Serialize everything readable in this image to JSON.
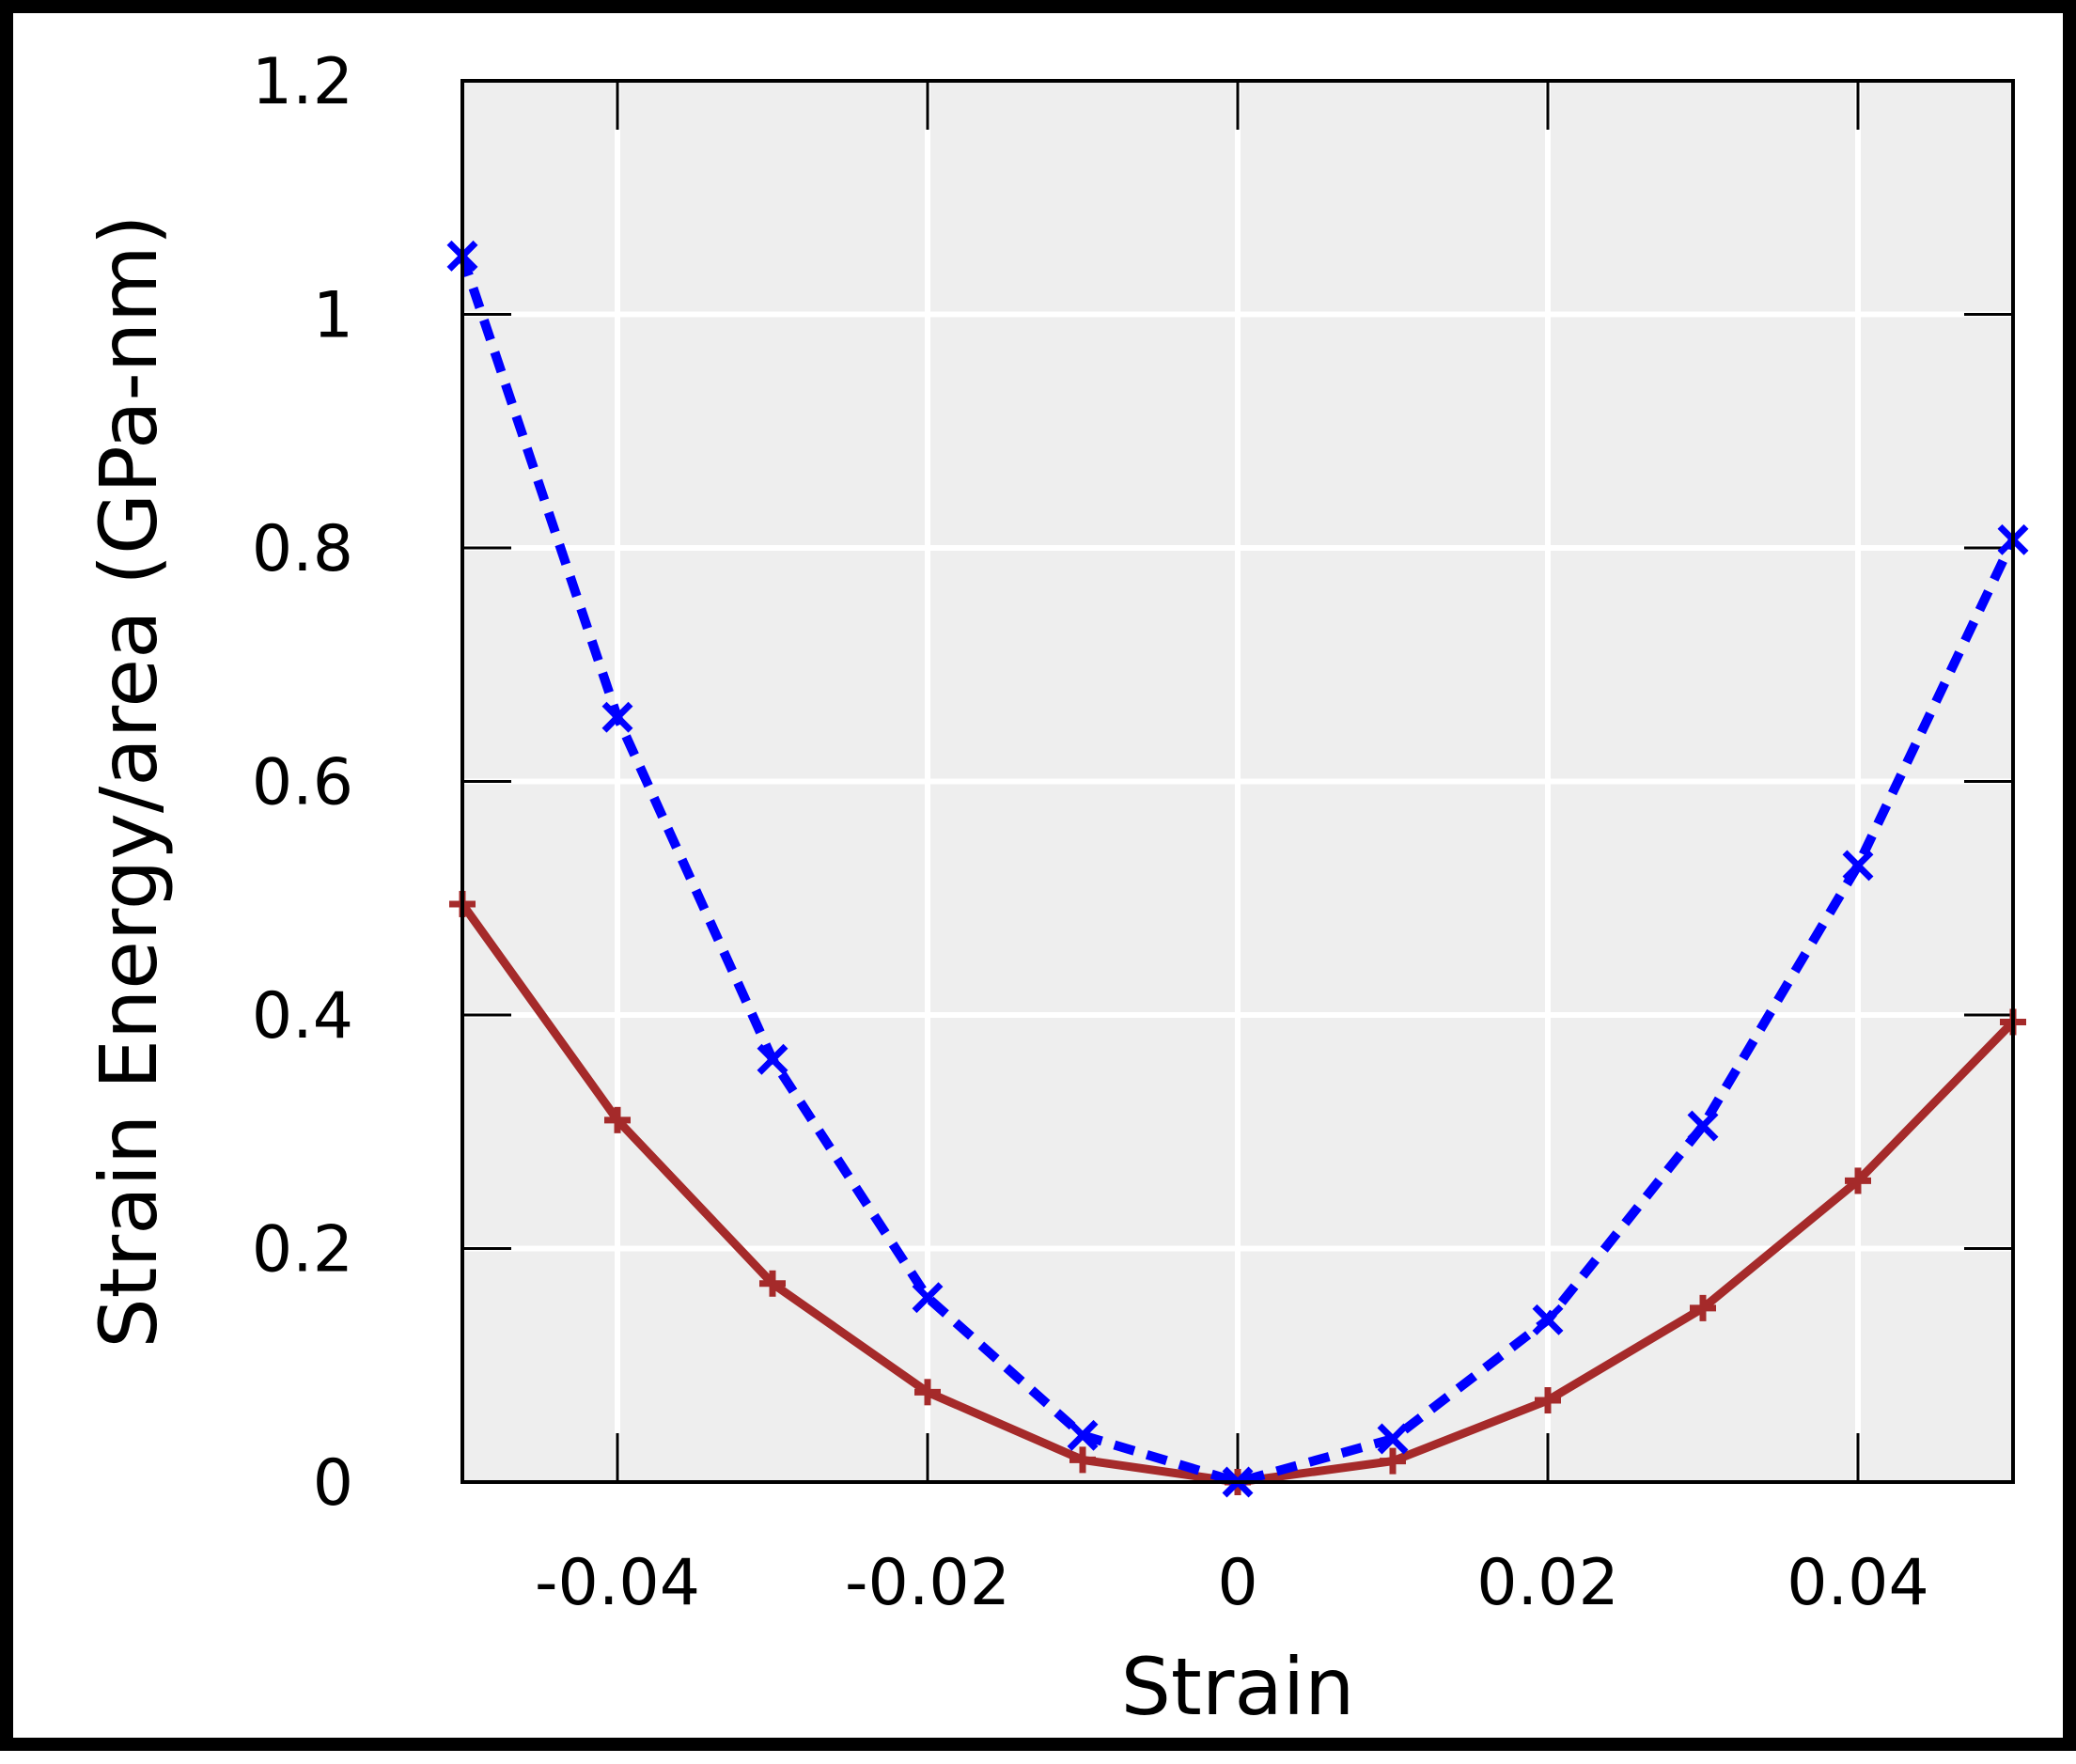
{
  "colors": {
    "background": "#ffffff",
    "plot_background": "#eeeeee",
    "grid": "#ffffff",
    "axis": "#000000",
    "series_solid": "#a52a2a",
    "series_dotted": "#0000ff"
  },
  "chart_data": {
    "type": "line",
    "title": "",
    "xlabel": "Strain",
    "ylabel": "Strain Energy/area (GPa-nm)",
    "xlim": [
      -0.05,
      0.05
    ],
    "ylim": [
      0,
      1.2
    ],
    "grid": true,
    "legend": "none",
    "xticks": [
      -0.04,
      -0.02,
      0,
      0.02,
      0.04
    ],
    "xtick_labels": [
      "-0.04",
      "-0.02",
      "0",
      "0.02",
      "0.04"
    ],
    "yticks": [
      0,
      0.2,
      0.4,
      0.6,
      0.8,
      1.0,
      1.2
    ],
    "ytick_labels": [
      "0",
      "0.2",
      "0.4",
      "0.6",
      "0.8",
      "1",
      "1.2"
    ],
    "x": [
      -0.05,
      -0.04,
      -0.03,
      -0.02,
      -0.01,
      0,
      0.01,
      0.02,
      0.03,
      0.04,
      0.05
    ],
    "series": [
      {
        "style": "solid",
        "marker": "plus",
        "color": "#a52a2a",
        "values": [
          0.495,
          0.31,
          0.17,
          0.077,
          0.019,
          0.0,
          0.018,
          0.07,
          0.149,
          0.258,
          0.394
        ]
      },
      {
        "style": "dotted",
        "marker": "x",
        "color": "#0000ff",
        "values": [
          1.05,
          0.655,
          0.362,
          0.158,
          0.04,
          0.0,
          0.037,
          0.139,
          0.305,
          0.528,
          0.807
        ]
      }
    ]
  }
}
